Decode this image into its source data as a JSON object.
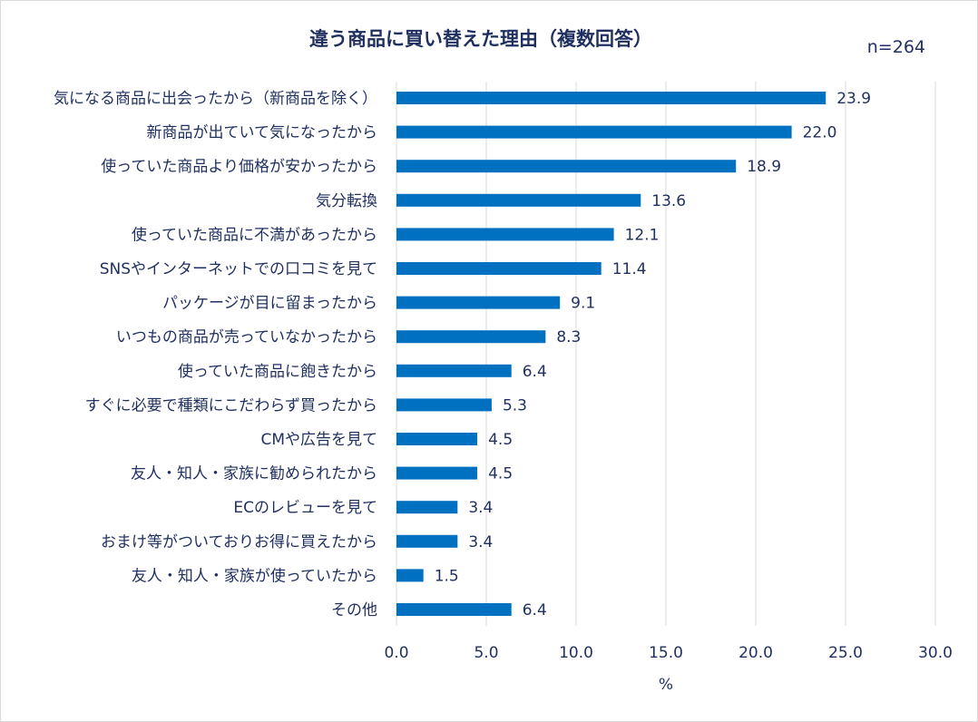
{
  "chart_data": {
    "type": "bar",
    "orientation": "horizontal",
    "title": "違う商品に買い替えた理由（複数回答）",
    "annotation": "n=264",
    "xlabel": "%",
    "ylabel": "",
    "xlim": [
      0,
      30
    ],
    "xticks": [
      "0.0",
      "5.0",
      "10.0",
      "15.0",
      "20.0",
      "25.0",
      "30.0"
    ],
    "grid": true,
    "bar_color": "#0070C0",
    "categories": [
      "気になる商品に出会ったから（新商品を除く）",
      "新商品が出ていて気になったから",
      "使っていた商品より価格が安かったから",
      "気分転換",
      "使っていた商品に不満があったから",
      "SNSやインターネットでの口コミを見て",
      "パッケージが目に留まったから",
      "いつもの商品が売っていなかったから",
      "使っていた商品に飽きたから",
      "すぐに必要で種類にこだわらず買ったから",
      "CMや広告を見て",
      "友人・知人・家族に勧められたから",
      "ECのレビューを見て",
      "おまけ等がついておりお得に買えたから",
      "友人・知人・家族が使っていたから",
      "その他"
    ],
    "values": [
      23.9,
      22.0,
      18.9,
      13.6,
      12.1,
      11.4,
      9.1,
      8.3,
      6.4,
      5.3,
      4.5,
      4.5,
      3.4,
      3.4,
      1.5,
      6.4
    ],
    "value_labels": [
      "23.9",
      "22.0",
      "18.9",
      "13.6",
      "12.1",
      "11.4",
      "9.1",
      "8.3",
      "6.4",
      "5.3",
      "4.5",
      "4.5",
      "3.4",
      "3.4",
      "1.5",
      "6.4"
    ]
  }
}
